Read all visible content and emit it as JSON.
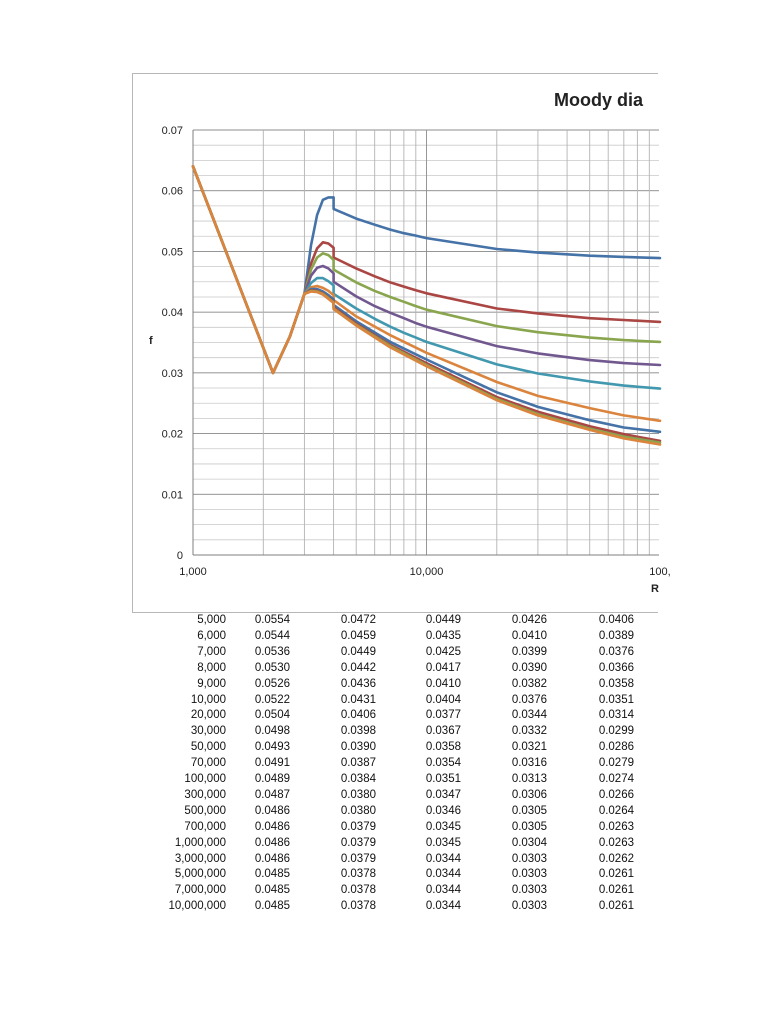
{
  "chart_data": {
    "type": "line",
    "title": "Moody dia",
    "xlabel": "R",
    "ylabel": "f",
    "x_scale": "log",
    "xlim": [
      1000,
      100000
    ],
    "ylim": [
      0,
      0.07
    ],
    "x_tick_labels": [
      "1,000",
      "10,000",
      "100,"
    ],
    "y_ticks": [
      0,
      0.01,
      0.02,
      0.03,
      0.04,
      0.05,
      0.06,
      0.07
    ],
    "y_tick_labels": [
      "0",
      "0.01",
      "0.02",
      "0.03",
      "0.04",
      "0.05",
      "0.06",
      "0.07"
    ],
    "grid": true,
    "series": [
      {
        "color": "#4572a7",
        "x": [
          1000,
          2200,
          2600,
          3000,
          3200,
          3400,
          3600,
          3800,
          3999,
          4000,
          5000,
          6000,
          7000,
          8000,
          9000,
          10000,
          20000,
          30000,
          50000,
          70000,
          100000
        ],
        "y": [
          0.064,
          0.03,
          0.036,
          0.043,
          0.051,
          0.056,
          0.0585,
          0.0589,
          0.0589,
          0.057,
          0.0554,
          0.0544,
          0.0536,
          0.053,
          0.0526,
          0.0522,
          0.0504,
          0.0498,
          0.0493,
          0.0491,
          0.0489
        ]
      },
      {
        "color": "#aa4643",
        "x": [
          1000,
          2200,
          2600,
          3000,
          3200,
          3400,
          3600,
          3800,
          3999,
          4000,
          5000,
          6000,
          7000,
          8000,
          9000,
          10000,
          20000,
          30000,
          50000,
          70000,
          100000
        ],
        "y": [
          0.064,
          0.03,
          0.036,
          0.043,
          0.048,
          0.0505,
          0.0515,
          0.0513,
          0.0506,
          0.049,
          0.0472,
          0.0459,
          0.0449,
          0.0442,
          0.0436,
          0.0431,
          0.0406,
          0.0398,
          0.039,
          0.0387,
          0.0384
        ]
      },
      {
        "color": "#89a54e",
        "x": [
          1000,
          2200,
          2600,
          3000,
          3200,
          3400,
          3600,
          3800,
          3999,
          4000,
          5000,
          6000,
          7000,
          8000,
          9000,
          10000,
          20000,
          30000,
          50000,
          70000,
          100000
        ],
        "y": [
          0.064,
          0.03,
          0.036,
          0.043,
          0.047,
          0.049,
          0.0497,
          0.0494,
          0.0486,
          0.047,
          0.0449,
          0.0435,
          0.0425,
          0.0417,
          0.041,
          0.0404,
          0.0377,
          0.0367,
          0.0358,
          0.0354,
          0.0351
        ]
      },
      {
        "color": "#71588f",
        "x": [
          1000,
          2200,
          2600,
          3000,
          3200,
          3400,
          3600,
          3800,
          3999,
          4000,
          5000,
          6000,
          7000,
          8000,
          9000,
          10000,
          20000,
          30000,
          50000,
          70000,
          100000
        ],
        "y": [
          0.064,
          0.03,
          0.036,
          0.043,
          0.046,
          0.0473,
          0.0476,
          0.0472,
          0.0464,
          0.045,
          0.0426,
          0.041,
          0.0399,
          0.039,
          0.0382,
          0.0376,
          0.0344,
          0.0332,
          0.0321,
          0.0316,
          0.0313
        ]
      },
      {
        "color": "#4198af",
        "x": [
          1000,
          2200,
          2600,
          3000,
          3200,
          3400,
          3600,
          3800,
          3999,
          4000,
          5000,
          6000,
          7000,
          8000,
          9000,
          10000,
          20000,
          30000,
          50000,
          70000,
          100000
        ],
        "y": [
          0.064,
          0.03,
          0.036,
          0.043,
          0.0448,
          0.0456,
          0.0456,
          0.0451,
          0.0444,
          0.043,
          0.0406,
          0.0389,
          0.0376,
          0.0366,
          0.0358,
          0.0351,
          0.0314,
          0.0299,
          0.0286,
          0.0279,
          0.0274
        ]
      },
      {
        "color": "#db843d",
        "x": [
          1000,
          2200,
          2600,
          3000,
          3200,
          3400,
          3600,
          3800,
          3999,
          4000,
          5000,
          7000,
          10000,
          20000,
          30000,
          50000,
          70000,
          100000
        ],
        "y": [
          0.064,
          0.03,
          0.036,
          0.043,
          0.0441,
          0.0443,
          0.044,
          0.0435,
          0.0428,
          0.042,
          0.0393,
          0.0362,
          0.0333,
          0.0285,
          0.0262,
          0.0242,
          0.023,
          0.0221
        ]
      },
      {
        "color": "#4572a7",
        "x": [
          1000,
          2200,
          2600,
          3000,
          3200,
          3400,
          3600,
          3800,
          3999,
          4000,
          5000,
          7000,
          10000,
          20000,
          30000,
          50000,
          70000,
          100000
        ],
        "y": [
          0.064,
          0.03,
          0.036,
          0.043,
          0.0438,
          0.0438,
          0.0434,
          0.0428,
          0.0421,
          0.0412,
          0.0385,
          0.0351,
          0.0322,
          0.0268,
          0.0244,
          0.0222,
          0.021,
          0.0203
        ]
      },
      {
        "color": "#aa4643",
        "x": [
          1000,
          2200,
          2600,
          3000,
          3200,
          3400,
          3600,
          3800,
          3999,
          4000,
          5000,
          7000,
          10000,
          20000,
          30000,
          50000,
          70000,
          100000
        ],
        "y": [
          0.064,
          0.03,
          0.036,
          0.043,
          0.0436,
          0.0435,
          0.0431,
          0.0424,
          0.0417,
          0.0408,
          0.0381,
          0.0346,
          0.0316,
          0.026,
          0.0236,
          0.0212,
          0.0199,
          0.0188
        ]
      },
      {
        "color": "#89a54e",
        "x": [
          1000,
          2200,
          2600,
          3000,
          3200,
          3400,
          3600,
          3800,
          3999,
          4000,
          5000,
          7000,
          10000,
          20000,
          30000,
          50000,
          70000,
          100000
        ],
        "y": [
          0.064,
          0.03,
          0.036,
          0.043,
          0.0435,
          0.0434,
          0.043,
          0.0423,
          0.0416,
          0.0406,
          0.0379,
          0.0344,
          0.0313,
          0.0257,
          0.0232,
          0.0208,
          0.0195,
          0.0185
        ]
      },
      {
        "color": "#db843d",
        "x": [
          1000,
          2200,
          2600,
          3000,
          3200,
          3400,
          3600,
          3800,
          3999,
          4000,
          5000,
          7000,
          10000,
          20000,
          30000,
          50000,
          70000,
          100000
        ],
        "y": [
          0.064,
          0.03,
          0.036,
          0.043,
          0.0434,
          0.0433,
          0.0429,
          0.0422,
          0.0415,
          0.0405,
          0.0378,
          0.0342,
          0.0311,
          0.0255,
          0.023,
          0.0206,
          0.0192,
          0.0182
        ]
      }
    ]
  },
  "table": {
    "rows": [
      [
        "5,000",
        "0.0554",
        "0.0472",
        "0.0449",
        "0.0426",
        "0.0406"
      ],
      [
        "6,000",
        "0.0544",
        "0.0459",
        "0.0435",
        "0.0410",
        "0.0389"
      ],
      [
        "7,000",
        "0.0536",
        "0.0449",
        "0.0425",
        "0.0399",
        "0.0376"
      ],
      [
        "8,000",
        "0.0530",
        "0.0442",
        "0.0417",
        "0.0390",
        "0.0366"
      ],
      [
        "9,000",
        "0.0526",
        "0.0436",
        "0.0410",
        "0.0382",
        "0.0358"
      ],
      [
        "10,000",
        "0.0522",
        "0.0431",
        "0.0404",
        "0.0376",
        "0.0351"
      ],
      [
        "20,000",
        "0.0504",
        "0.0406",
        "0.0377",
        "0.0344",
        "0.0314"
      ],
      [
        "30,000",
        "0.0498",
        "0.0398",
        "0.0367",
        "0.0332",
        "0.0299"
      ],
      [
        "50,000",
        "0.0493",
        "0.0390",
        "0.0358",
        "0.0321",
        "0.0286"
      ],
      [
        "70,000",
        "0.0491",
        "0.0387",
        "0.0354",
        "0.0316",
        "0.0279"
      ],
      [
        "100,000",
        "0.0489",
        "0.0384",
        "0.0351",
        "0.0313",
        "0.0274"
      ],
      [
        "300,000",
        "0.0487",
        "0.0380",
        "0.0347",
        "0.0306",
        "0.0266"
      ],
      [
        "500,000",
        "0.0486",
        "0.0380",
        "0.0346",
        "0.0305",
        "0.0264"
      ],
      [
        "700,000",
        "0.0486",
        "0.0379",
        "0.0345",
        "0.0305",
        "0.0263"
      ],
      [
        "1,000,000",
        "0.0486",
        "0.0379",
        "0.0345",
        "0.0304",
        "0.0263"
      ],
      [
        "3,000,000",
        "0.0486",
        "0.0379",
        "0.0344",
        "0.0303",
        "0.0262"
      ],
      [
        "5,000,000",
        "0.0485",
        "0.0378",
        "0.0344",
        "0.0303",
        "0.0261"
      ],
      [
        "7,000,000",
        "0.0485",
        "0.0378",
        "0.0344",
        "0.0303",
        "0.0261"
      ],
      [
        "10,000,000",
        "0.0485",
        "0.0378",
        "0.0344",
        "0.0303",
        "0.0261"
      ]
    ]
  }
}
